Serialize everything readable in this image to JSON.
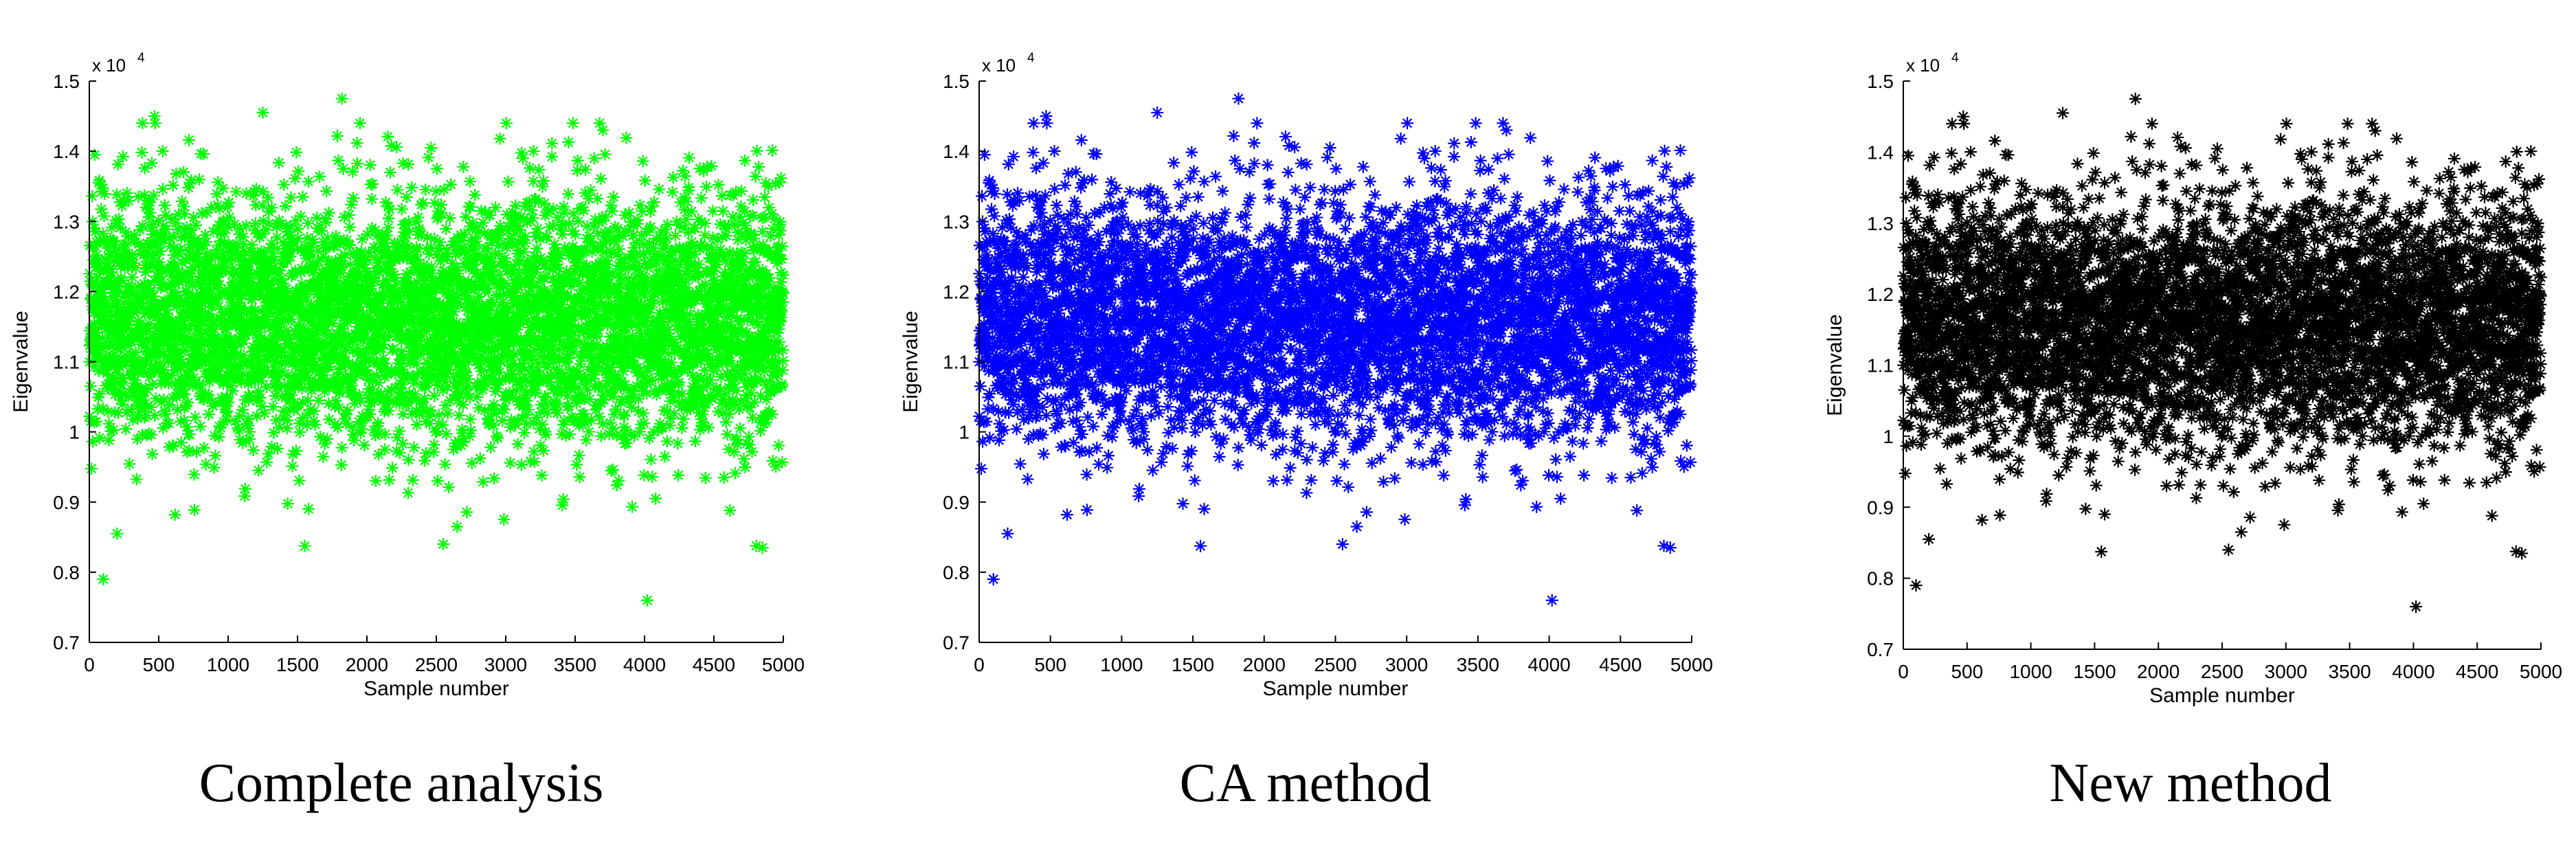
{
  "captions": [
    "Complete analysis",
    "CA method",
    "New method"
  ],
  "chart_data": [
    {
      "type": "scatter",
      "caption": "Complete analysis",
      "xlabel": "Sample number",
      "ylabel": "Eigenvalue",
      "exponent_label": "x 10",
      "exponent_power": "4",
      "xlim": [
        0,
        5000
      ],
      "ylim": [
        0.7,
        1.5
      ],
      "xticks": [
        "0",
        "500",
        "1000",
        "1500",
        "2000",
        "2500",
        "3000",
        "3500",
        "4000",
        "4500",
        "5000"
      ],
      "yticks": [
        "0.7",
        "0.8",
        "0.9",
        "1",
        "1.1",
        "1.2",
        "1.3",
        "1.4",
        "1.5"
      ],
      "marker": "*",
      "color": "#00ff00",
      "num_points": 5000,
      "distribution_mean": 1.16,
      "distribution_std": 0.09,
      "notable_points": [
        {
          "x": 100,
          "y": 0.79
        },
        {
          "x": 1820,
          "y": 1.475
        },
        {
          "x": 1250,
          "y": 1.455
        },
        {
          "x": 470,
          "y": 1.45
        },
        {
          "x": 4020,
          "y": 0.76
        },
        {
          "x": 4850,
          "y": 0.835
        },
        {
          "x": 2550,
          "y": 0.84
        },
        {
          "x": 200,
          "y": 0.855
        },
        {
          "x": 2650,
          "y": 0.865
        },
        {
          "x": 3700,
          "y": 1.43
        }
      ]
    },
    {
      "type": "scatter",
      "caption": "CA method",
      "xlabel": "Sample number",
      "ylabel": "Eigenvalue",
      "exponent_label": "x 10",
      "exponent_power": "4",
      "xlim": [
        0,
        5000
      ],
      "ylim": [
        0.7,
        1.5
      ],
      "xticks": [
        "0",
        "500",
        "1000",
        "1500",
        "2000",
        "2500",
        "3000",
        "3500",
        "4000",
        "4500",
        "5000"
      ],
      "yticks": [
        "0.7",
        "0.8",
        "0.9",
        "1",
        "1.1",
        "1.2",
        "1.3",
        "1.4",
        "1.5"
      ],
      "marker": "*",
      "color": "#0000ff",
      "num_points": 5000,
      "distribution_mean": 1.16,
      "distribution_std": 0.09,
      "notable_points": [
        {
          "x": 100,
          "y": 0.79
        },
        {
          "x": 1820,
          "y": 1.475
        },
        {
          "x": 1250,
          "y": 1.455
        },
        {
          "x": 470,
          "y": 1.45
        },
        {
          "x": 4020,
          "y": 0.76
        },
        {
          "x": 4850,
          "y": 0.835
        },
        {
          "x": 2550,
          "y": 0.84
        },
        {
          "x": 200,
          "y": 0.855
        },
        {
          "x": 2650,
          "y": 0.865
        },
        {
          "x": 3700,
          "y": 1.43
        }
      ]
    },
    {
      "type": "scatter",
      "caption": "New method",
      "xlabel": "Sample number",
      "ylabel": "Eigenvalue",
      "exponent_label": "x 10",
      "exponent_power": "4",
      "xlim": [
        0,
        5000
      ],
      "ylim": [
        0.7,
        1.5
      ],
      "xticks": [
        "0",
        "500",
        "1000",
        "1500",
        "2000",
        "2500",
        "3000",
        "3500",
        "4000",
        "4500",
        "5000"
      ],
      "yticks": [
        "0.7",
        "0.8",
        "0.9",
        "1",
        "1.1",
        "1.2",
        "1.3",
        "1.4",
        "1.5"
      ],
      "marker": "*",
      "color": "#000000",
      "num_points": 5000,
      "distribution_mean": 1.16,
      "distribution_std": 0.09,
      "notable_points": [
        {
          "x": 100,
          "y": 0.79
        },
        {
          "x": 1820,
          "y": 1.475
        },
        {
          "x": 1250,
          "y": 1.455
        },
        {
          "x": 470,
          "y": 1.45
        },
        {
          "x": 4020,
          "y": 0.76
        },
        {
          "x": 4850,
          "y": 0.835
        },
        {
          "x": 2550,
          "y": 0.84
        },
        {
          "x": 200,
          "y": 0.855
        },
        {
          "x": 2650,
          "y": 0.865
        },
        {
          "x": 3700,
          "y": 1.43
        }
      ]
    }
  ]
}
